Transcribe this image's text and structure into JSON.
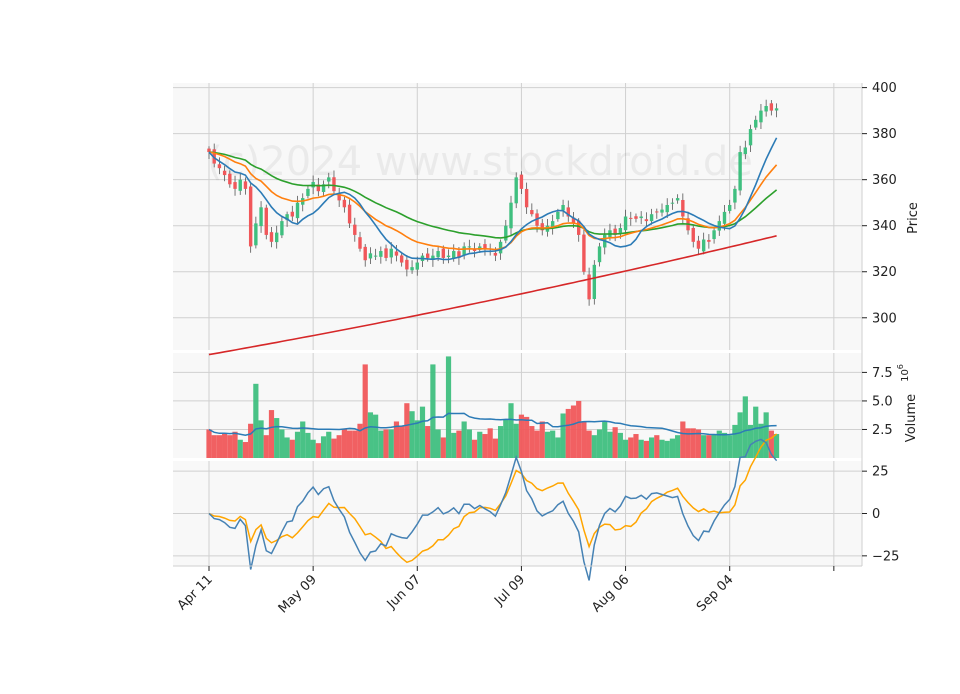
{
  "chart_data": {
    "type": "candlestick",
    "watermark": "(c)2024 www.stockdroid.de",
    "x_ticks": [
      {
        "label": "Apr 11",
        "index": 0
      },
      {
        "label": "May 09",
        "index": 20
      },
      {
        "label": "Jun 07",
        "index": 40
      },
      {
        "label": "Jul 09",
        "index": 60
      },
      {
        "label": "Aug 06",
        "index": 80
      },
      {
        "label": "Sep 04",
        "index": 100
      },
      {
        "label": "",
        "index": 120
      }
    ],
    "price_panel": {
      "ylabel": "Price",
      "ylim": [
        286,
        402
      ],
      "yticks": [
        300,
        320,
        340,
        360,
        380,
        400
      ],
      "colors": {
        "up": "#3fbf7f",
        "down": "#f0575a",
        "ma_short": "#2c7bb6",
        "ma_mid": "#ff7f0e",
        "ma_long": "#2ca02c",
        "ma_200": "#d62728"
      },
      "closes": [
        372,
        367,
        365,
        362,
        358,
        356,
        360,
        356,
        331,
        341,
        348,
        336,
        333,
        337,
        342,
        345,
        344,
        350,
        352,
        356,
        359,
        355,
        358,
        361,
        355,
        351,
        348,
        341,
        336,
        330,
        325,
        328,
        327,
        329,
        326,
        330,
        327,
        324,
        321,
        322,
        324,
        327,
        326,
        327,
        329,
        326,
        327,
        329,
        326,
        331,
        331,
        329,
        331,
        330,
        329,
        327,
        333,
        340,
        350,
        361,
        356,
        348,
        345,
        340,
        338,
        340,
        342,
        346,
        349,
        344,
        341,
        336,
        320,
        308,
        323,
        331,
        336,
        338,
        336,
        339,
        344,
        343,
        343,
        344,
        342,
        345,
        346,
        347,
        349,
        350,
        352,
        344,
        338,
        333,
        330,
        334,
        333,
        338,
        342,
        346,
        349,
        356,
        372,
        374,
        382,
        386,
        390,
        392,
        390,
        391
      ],
      "volumes": [
        2.5,
        2.0,
        2.0,
        2.2,
        2.0,
        2.3,
        1.6,
        1.4,
        3.0,
        6.5,
        3.3,
        2.0,
        4.2,
        3.5,
        2.5,
        1.8,
        1.6,
        2.3,
        3.2,
        2.2,
        1.6,
        1.3,
        1.9,
        2.3,
        1.7,
        2.0,
        2.5,
        2.4,
        2.4,
        3.0,
        8.2,
        4.0,
        3.8,
        2.4,
        2.5,
        2.5,
        3.2,
        2.8,
        4.8,
        4.1,
        3.3,
        4.5,
        2.8,
        8.2,
        2.5,
        1.8,
        8.9,
        2.2,
        2.4,
        3.2,
        2.5,
        1.6,
        2.3,
        2.1,
        2.6,
        1.7,
        2.8,
        3.4,
        4.8,
        3.0,
        3.8,
        3.6,
        2.8,
        2.4,
        3.2,
        2.3,
        2.4,
        1.8,
        3.9,
        4.3,
        4.6,
        5.0,
        3.2,
        2.4,
        2.0,
        2.5,
        3.2,
        2.3,
        2.7,
        2.2,
        1.6,
        1.8,
        2.1,
        1.6,
        1.5,
        1.8,
        2.0,
        1.6,
        1.5,
        1.7,
        2.0,
        3.2,
        2.6,
        2.6,
        2.5,
        2.0,
        2.0,
        2.1,
        2.4,
        2.2,
        2.0,
        2.9,
        4.0,
        5.4,
        2.9,
        4.5,
        3.0,
        4.0,
        2.4,
        2.1
      ]
    },
    "volume_panel": {
      "ylabel": "Volume",
      "unit": "10^6",
      "ylim": [
        0,
        9.2
      ],
      "yticks": [
        2.5,
        5.0,
        7.5
      ],
      "avg_color": "#2c7bb6"
    },
    "oscillator_panel": {
      "ylim": [
        -31,
        31
      ],
      "yticks": [
        -25,
        0,
        25
      ],
      "colors": {
        "line1": "#4682b4",
        "line2": "#ffa500"
      }
    }
  }
}
